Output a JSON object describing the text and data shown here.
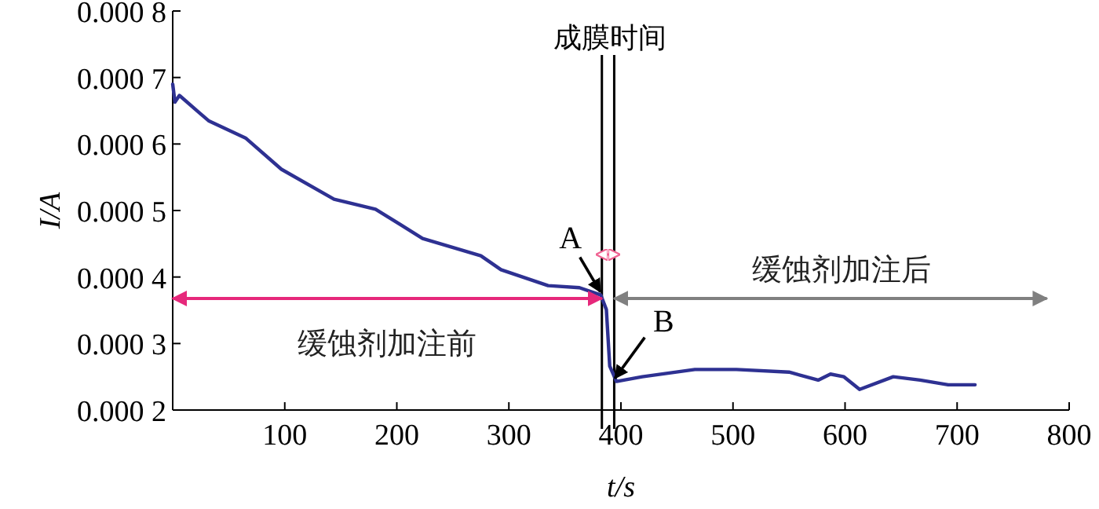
{
  "chart_data": {
    "type": "line",
    "xlabel": "t/s",
    "ylabel": "I/A",
    "series": [
      {
        "color": "#2e3192",
        "x": [
          0,
          2,
          6,
          32,
          65,
          97,
          144,
          181,
          223,
          275,
          293,
          335,
          363,
          382,
          387,
          390,
          396,
          419,
          466,
          503,
          550,
          576,
          587,
          599,
          613,
          643,
          667,
          692,
          716
        ],
        "values": [
          0.00069,
          0.000663,
          0.000673,
          0.000635,
          0.000609,
          0.000562,
          0.000517,
          0.000502,
          0.000458,
          0.000432,
          0.000411,
          0.000387,
          0.000384,
          0.000373,
          0.000351,
          0.000266,
          0.000243,
          0.00025,
          0.000261,
          0.000261,
          0.000257,
          0.000245,
          0.000254,
          0.00025,
          0.000231,
          0.00025,
          0.000245,
          0.000238,
          0.000238
        ]
      }
    ],
    "xlim": [
      0,
      800
    ],
    "xticks": [
      100,
      200,
      300,
      400,
      500,
      600,
      700,
      800
    ],
    "ylim": [
      0.0002,
      0.0008
    ],
    "yticks": [
      0.0002,
      0.0003,
      0.0004,
      0.0005,
      0.0006,
      0.0007,
      0.0008
    ],
    "ref_lines": [
      {
        "axis": "x",
        "value": 383,
        "color": "#000000",
        "label": "成膜时间"
      },
      {
        "axis": "x",
        "value": 394,
        "color": "#000000"
      }
    ],
    "annotations": [
      {
        "text": "A",
        "x": 383,
        "y": 0.000373
      },
      {
        "text": "B",
        "x": 396,
        "y": 0.000243
      },
      "缓蚀剂加注前",
      "缓蚀剂加注后"
    ],
    "grid": false,
    "marker": "none",
    "line_style": "solid"
  }
}
